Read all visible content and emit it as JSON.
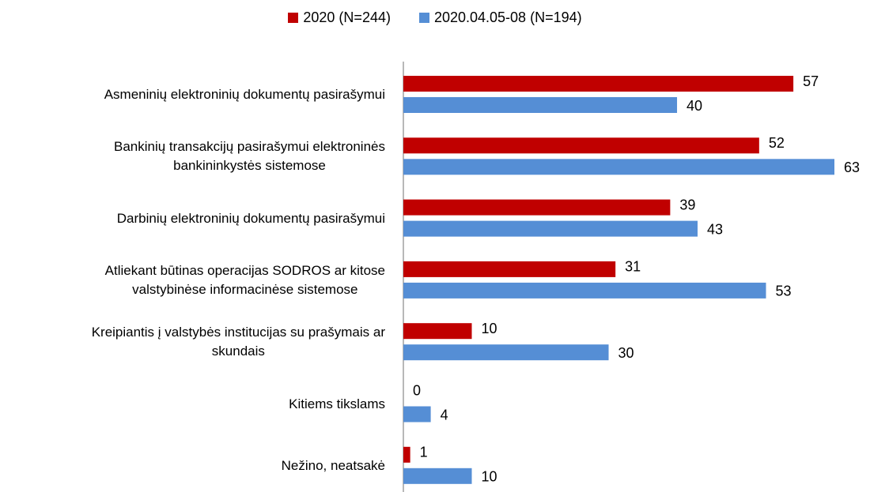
{
  "chart_data": {
    "type": "bar",
    "orientation": "horizontal",
    "categories": [
      "Asmeninių elektroninių dokumentų pasirašymui",
      "Bankinių transakcijų pasirašymui elektroninės\nbankininkystės sistemose",
      "Darbinių elektroninių dokumentų pasirašymui",
      "Atliekant būtinas operacijas SODROS ar kitose\nvalstybinėse informacinėse sistemose",
      "Kreipiantis į valstybės institucijas su prašymais ar\nskundais",
      "Kitiems tikslams",
      "Nežino, neatsakė"
    ],
    "series": [
      {
        "name": "2020 (N=244)",
        "color": "#c00000",
        "values": [
          57,
          52,
          39,
          31,
          10,
          0,
          1
        ]
      },
      {
        "name": "2020.04.05-08 (N=194)",
        "color": "#558ed5",
        "values": [
          40,
          63,
          43,
          53,
          30,
          4,
          10
        ]
      }
    ],
    "legend": "top"
  }
}
